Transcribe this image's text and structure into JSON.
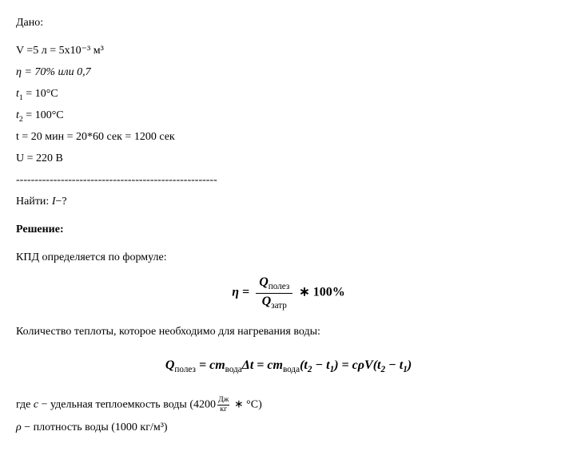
{
  "given_label": "Дано:",
  "lines": {
    "v": "V =5 л = 5x10⁻³ м³",
    "eta": "η = 70% или 0,7",
    "t1_prefix": "t",
    "t1_sub": "1",
    "t1_rest": " = 10°C",
    "t2_prefix": "t",
    "t2_sub": "2",
    "t2_rest": " = 100°C",
    "t": "t = 20 мин = 20*60 сек = 1200 сек",
    "u": "U = 220 В"
  },
  "dashes": "------------------------------------------------------",
  "find_prefix": "Найти: ",
  "find_var": "I",
  "find_suffix": "−?",
  "solution_label": "Решение:",
  "kpd_text": "КПД определяется по формуле:",
  "formula1": {
    "eta": "η",
    "eq": " = ",
    "q": "Q",
    "sub_polez": "полез",
    "sub_zatr": "затр",
    "star100": " ∗ 100%"
  },
  "qty_text": "Количество теплоты, которое необходимо для нагревания воды:",
  "formula2": {
    "q": "Q",
    "sub_polez": "полез",
    "eq": " = ",
    "c": "c",
    "m": "m",
    "sub_voda": "вода",
    "delta_t": "Δt",
    "eq2": " = ",
    "t2": "t",
    "sub2": "2",
    "minus": " − ",
    "t1": "t",
    "sub1": "1",
    "eq3": " = ",
    "rho": "ρ",
    "v": "V"
  },
  "where": {
    "prefix": "где ",
    "c": "c",
    "dash": " − удельная теплоемкость воды  (4200",
    "frac_num": "Дж",
    "frac_den": "кг",
    "suffix": " ∗ °C)"
  },
  "rho_line": {
    "rho": "ρ",
    "text": " − плотность воды (1000 кг/м³)"
  }
}
